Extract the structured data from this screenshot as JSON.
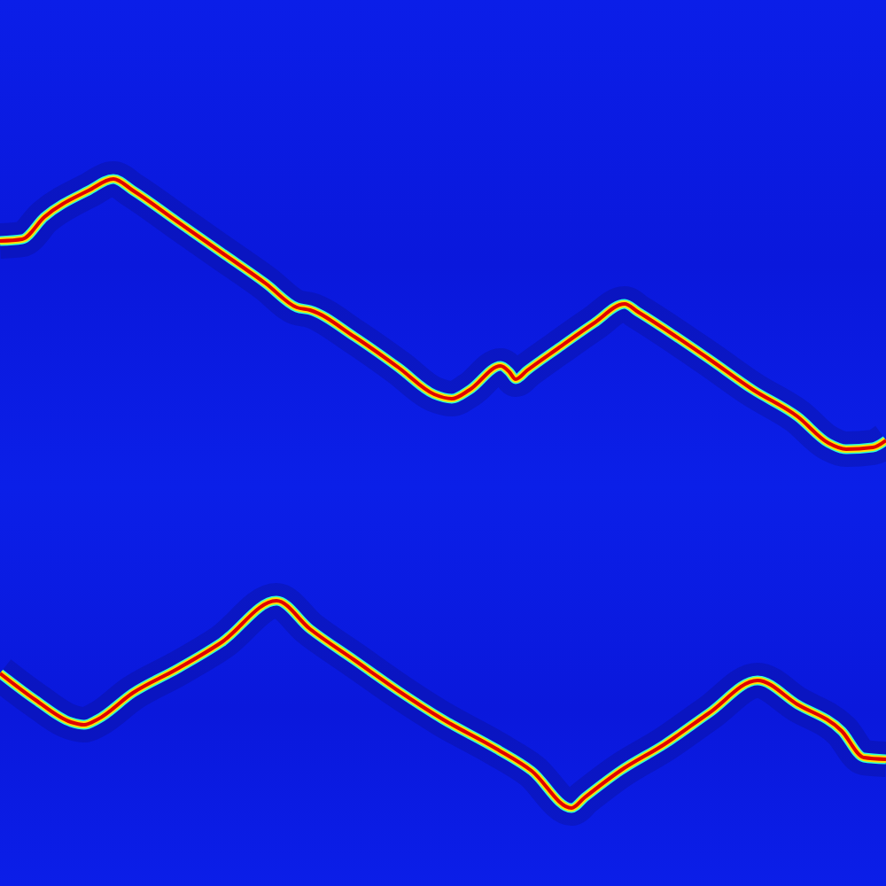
{
  "chart_data": {
    "type": "line",
    "xlim": [
      0,
      1000
    ],
    "ylim": [
      0,
      1000
    ],
    "xticks": [
      0,
      1000
    ],
    "yticks": [
      0,
      1000
    ],
    "grid": false,
    "tick_labels": false,
    "series": [
      {
        "color": "#e00000",
        "marker": "none",
        "line_style": "solid",
        "x": [
          0,
          25,
          50,
          100,
          128,
          150,
          200,
          250,
          300,
          335,
          350,
          400,
          450,
          490,
          510,
          530,
          565,
          575,
          582,
          595,
          630,
          670,
          705,
          720,
          800,
          850,
          900,
          935,
          955,
          985,
          1000
        ],
        "values": [
          728,
          730,
          755,
          785,
          798,
          785,
          750,
          715,
          680,
          653,
          650,
          620,
          585,
          555,
          550,
          560,
          587,
          580,
          572,
          582,
          607,
          635,
          657,
          648,
          595,
          560,
          530,
          500,
          493,
          495,
          503
        ]
      },
      {
        "color": "#e00000",
        "marker": "none",
        "line_style": "solid",
        "x": [
          0,
          40,
          80,
          95,
          110,
          150,
          200,
          250,
          312,
          350,
          400,
          450,
          500,
          560,
          600,
          645,
          660,
          700,
          750,
          800,
          855,
          900,
          950,
          975,
          1000
        ],
        "values": [
          240,
          210,
          185,
          182,
          188,
          218,
          245,
          275,
          322,
          290,
          255,
          220,
          188,
          155,
          130,
          88,
          100,
          130,
          160,
          195,
          232,
          205,
          175,
          145,
          143
        ]
      }
    ]
  }
}
